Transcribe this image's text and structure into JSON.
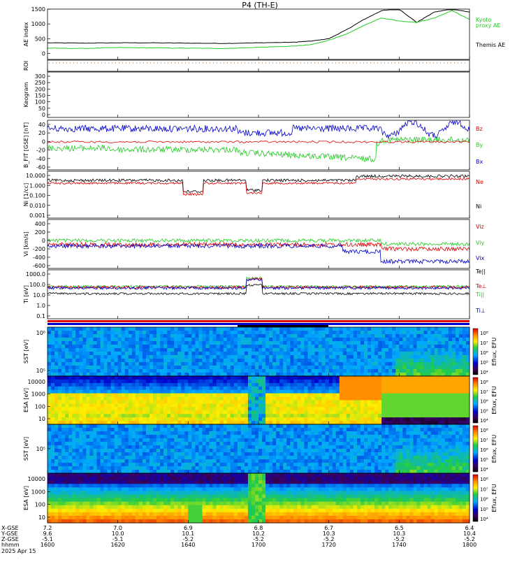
{
  "title": "P4 (TH-E)",
  "date_label": "2025 Apr 15",
  "time_axis": {
    "tick_labels": [
      "1600",
      "1620",
      "1640",
      "1700",
      "1720",
      "1740",
      "1800"
    ],
    "row_labels": [
      "X-GSE",
      "Y-GSE",
      "Z-GSE",
      "hhmm"
    ],
    "x_gse": [
      "7.2",
      "7.0",
      "6.9",
      "6.8",
      "6.7",
      "6.5",
      "6.4"
    ],
    "y_gse": [
      "9.6",
      "10.0",
      "10.1",
      "10.2",
      "10.3",
      "10.3",
      "10.4"
    ],
    "z_gse": [
      "-5.1",
      "-5.1",
      "-5.2",
      "-5.2",
      "-5.2",
      "-5.2",
      "-5.2"
    ]
  },
  "colors": {
    "black": "#000000",
    "green": "#22cc22",
    "blue": "#0000cc",
    "red": "#dd0000"
  },
  "chart_data": [
    {
      "type": "line",
      "panel": "ae",
      "ylabel": "AE index",
      "ylim": [
        -200,
        1500
      ],
      "yticks": [
        "0",
        "500",
        "1000",
        "1500"
      ],
      "x": [
        1600,
        1610,
        1620,
        1630,
        1640,
        1650,
        1700,
        1710,
        1715,
        1720,
        1725,
        1730,
        1735,
        1740,
        1745,
        1750,
        1755,
        1800
      ],
      "series": [
        {
          "name": "Themis AE",
          "color": "#000000",
          "values": [
            360,
            350,
            360,
            360,
            350,
            340,
            360,
            380,
            420,
            500,
            800,
            1150,
            1450,
            1500,
            1050,
            1400,
            1500,
            1400
          ]
        },
        {
          "name": "Kyoto proxy AE",
          "color": "#22cc22",
          "values": [
            180,
            170,
            200,
            190,
            180,
            170,
            210,
            250,
            300,
            450,
            650,
            950,
            1200,
            1100,
            1050,
            1200,
            1450,
            1150
          ]
        }
      ],
      "legend": [
        "Kyoto",
        "proxy AE",
        "Themis AE"
      ]
    },
    {
      "type": "line",
      "panel": "roi",
      "ylabel": "ROI"
    },
    {
      "type": "line",
      "panel": "keogram",
      "ylabel": "Keogram",
      "ylim": [
        0,
        300
      ],
      "yticks": [
        "0",
        "50",
        "100",
        "150",
        "200",
        "250",
        "300"
      ]
    },
    {
      "type": "line",
      "panel": "bfield",
      "ylabel": "B_FIT [GSE] [nT]",
      "ylim": [
        -60,
        40
      ],
      "yticks": [
        "-60",
        "-40",
        "-20",
        "0",
        "20",
        "40"
      ],
      "series": [
        {
          "name": "Bz",
          "color": "#dd0000"
        },
        {
          "name": "By",
          "color": "#22cc22"
        },
        {
          "name": "Bx",
          "color": "#0000cc"
        }
      ]
    },
    {
      "type": "line",
      "panel": "density",
      "ylabel": "Ni [1/cc]",
      "scale": "log",
      "yticks": [
        "0.001",
        "0.010",
        "0.100",
        "1.000",
        "10.000"
      ],
      "series": [
        {
          "name": "Ne",
          "color": "#dd0000"
        },
        {
          "name": "Ni",
          "color": "#000000"
        }
      ]
    },
    {
      "type": "line",
      "panel": "velocity",
      "ylabel": "Vi [km/s]",
      "ylim": [
        -600,
        400
      ],
      "yticks": [
        "-600",
        "-400",
        "-200",
        "0",
        "200",
        "400"
      ],
      "series": [
        {
          "name": "Viz",
          "color": "#dd0000"
        },
        {
          "name": "Viy",
          "color": "#22cc22"
        },
        {
          "name": "Vix",
          "color": "#0000cc"
        }
      ]
    },
    {
      "type": "line",
      "panel": "temperature",
      "ylabel": "Ti [eV]",
      "scale": "log",
      "yticks": [
        "0.1",
        "1.0",
        "10.0",
        "100.0",
        "1000.0"
      ],
      "series": [
        {
          "name": "Te||",
          "color": "#000000"
        },
        {
          "name": "Te⊥",
          "color": "#dd0000"
        },
        {
          "name": "Ti||",
          "color": "#22cc22"
        },
        {
          "name": "Ti⊥",
          "color": "#0000cc"
        }
      ]
    },
    {
      "type": "heatmap",
      "panel": "sst_i",
      "ylabel": "SST [eV]",
      "yticks": [
        "10⁵",
        "10⁶"
      ],
      "colorbar": {
        "label": "Eflux, EFU",
        "ticks": [
          "10⁸",
          "10⁷",
          "10⁶",
          "10⁵",
          "10⁴"
        ]
      }
    },
    {
      "type": "heatmap",
      "panel": "esa_i",
      "ylabel": "ESA [eV]",
      "yticks": [
        "10",
        "100",
        "1000",
        "10000"
      ],
      "colorbar": {
        "label": "Eflux, EFU",
        "ticks": [
          "10⁸",
          "10⁷",
          "10⁶",
          "10⁵",
          "10⁴"
        ]
      }
    },
    {
      "type": "heatmap",
      "panel": "sst_e",
      "ylabel": "SST [eV]",
      "yticks": [
        "10⁵"
      ],
      "colorbar": {
        "label": "Eflux, EFU",
        "ticks": [
          "10⁸",
          "10⁷",
          "10⁶",
          "10⁵",
          "10⁴"
        ]
      }
    },
    {
      "type": "heatmap",
      "panel": "esa_e",
      "ylabel": "ESA [eV]",
      "yticks": [
        "10",
        "100",
        "1000",
        "10000"
      ],
      "colorbar": {
        "label": "Eflux, EFU",
        "ticks": [
          "10⁸",
          "10⁷",
          "10⁶",
          "10⁵",
          "10⁴"
        ]
      }
    }
  ]
}
